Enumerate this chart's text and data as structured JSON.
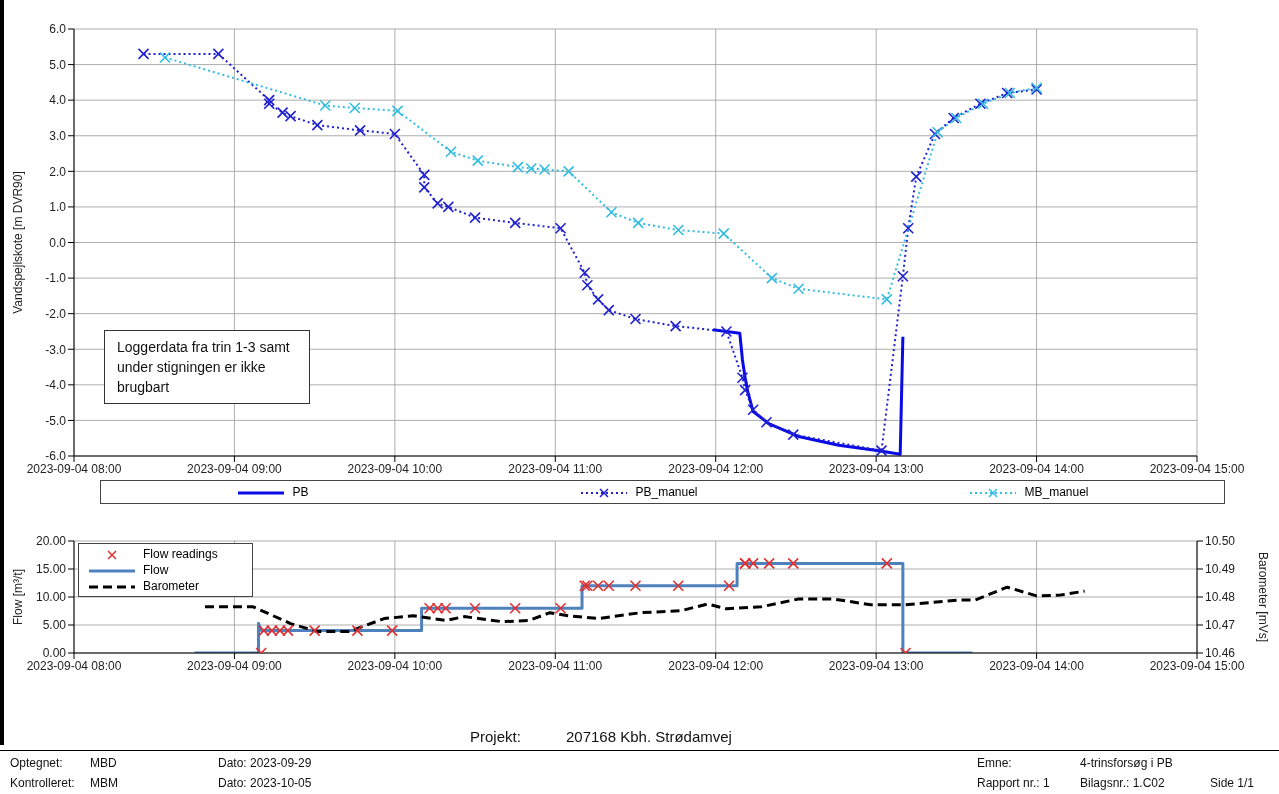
{
  "chart_data": [
    {
      "type": "line",
      "ylabel": "Vandspejlskote [m DVR90]",
      "xlim": [
        "2023-09-04T08:00",
        "2023-09-04T15:00"
      ],
      "xticks": [
        {
          "value": "2023-09-04T08:00",
          "label": "2023-09-04 08:00"
        },
        {
          "value": "2023-09-04T09:00",
          "label": "2023-09-04 09:00"
        },
        {
          "value": "2023-09-04T10:00",
          "label": "2023-09-04 10:00"
        },
        {
          "value": "2023-09-04T11:00",
          "label": "2023-09-04 11:00"
        },
        {
          "value": "2023-09-04T12:00",
          "label": "2023-09-04 12:00"
        },
        {
          "value": "2023-09-04T13:00",
          "label": "2023-09-04 13:00"
        },
        {
          "value": "2023-09-04T14:00",
          "label": "2023-09-04 14:00"
        },
        {
          "value": "2023-09-04T15:00",
          "label": "2023-09-04 15:00"
        }
      ],
      "ylim": [
        -6,
        6
      ],
      "yticks": [
        {
          "value": -6,
          "label": "-6.0"
        },
        {
          "value": -5,
          "label": "-5.0"
        },
        {
          "value": -4,
          "label": "-4.0"
        },
        {
          "value": -3,
          "label": "-3.0"
        },
        {
          "value": -2,
          "label": "-2.0"
        },
        {
          "value": -1,
          "label": "-1.0"
        },
        {
          "value": 0,
          "label": "0.0"
        },
        {
          "value": 1,
          "label": "1.0"
        },
        {
          "value": 2,
          "label": "2.0"
        },
        {
          "value": 3,
          "label": "3.0"
        },
        {
          "value": 4,
          "label": "4.0"
        },
        {
          "value": 5,
          "label": "5.0"
        },
        {
          "value": 6,
          "label": "6.0"
        }
      ],
      "grid": true,
      "legend": "bottom",
      "annotations": [
        "Loggerdata fra trin 1-3 samt under stigningen er ikke brugbart"
      ],
      "series": [
        {
          "name": "PB",
          "color": "#0a0ae6",
          "marker": "none",
          "line_style": "solid",
          "x": [
            "2023-09-04T11:59",
            "2023-09-04T12:09",
            "2023-09-04T12:10",
            "2023-09-04T12:11",
            "2023-09-04T12:12",
            "2023-09-04T12:14",
            "2023-09-04T12:20",
            "2023-09-04T12:31",
            "2023-09-04T12:46",
            "2023-09-04T13:01",
            "2023-09-04T13:09",
            "2023-09-04T13:10"
          ],
          "values": [
            -2.45,
            -2.55,
            -3.3,
            -3.8,
            -4.2,
            -4.75,
            -5.1,
            -5.45,
            -5.7,
            -5.85,
            -5.95,
            -2.65
          ]
        },
        {
          "name": "PB_manuel",
          "color": "#2020d0",
          "marker": "cross",
          "line_style": "dotted",
          "x": [
            "2023-09-04T08:26",
            "2023-09-04T08:54",
            "2023-09-04T09:13",
            "2023-09-04T09:13",
            "2023-09-04T09:18",
            "2023-09-04T09:21",
            "2023-09-04T09:31",
            "2023-09-04T09:47",
            "2023-09-04T10:00",
            "2023-09-04T10:11",
            "2023-09-04T10:11",
            "2023-09-04T10:16",
            "2023-09-04T10:20",
            "2023-09-04T10:30",
            "2023-09-04T10:45",
            "2023-09-04T11:02",
            "2023-09-04T11:11",
            "2023-09-04T11:12",
            "2023-09-04T11:16",
            "2023-09-04T11:20",
            "2023-09-04T11:30",
            "2023-09-04T11:45",
            "2023-09-04T12:04",
            "2023-09-04T12:10",
            "2023-09-04T12:11",
            "2023-09-04T12:14",
            "2023-09-04T12:19",
            "2023-09-04T12:29",
            "2023-09-04T13:02",
            "2023-09-04T13:10",
            "2023-09-04T13:12",
            "2023-09-04T13:15",
            "2023-09-04T13:22",
            "2023-09-04T13:29",
            "2023-09-04T13:39",
            "2023-09-04T13:49",
            "2023-09-04T14:00"
          ],
          "values": [
            5.3,
            5.3,
            4.0,
            3.9,
            3.65,
            3.55,
            3.3,
            3.15,
            3.05,
            1.9,
            1.55,
            1.1,
            1.0,
            0.7,
            0.55,
            0.4,
            -0.85,
            -1.2,
            -1.6,
            -1.9,
            -2.15,
            -2.35,
            -2.5,
            -3.8,
            -4.15,
            -4.7,
            -5.05,
            -5.4,
            -5.85,
            -0.95,
            0.4,
            1.85,
            3.05,
            3.5,
            3.9,
            4.2,
            4.3
          ]
        },
        {
          "name": "MB_manuel",
          "color": "#33bde0",
          "marker": "cross",
          "line_style": "dotted",
          "x": [
            "2023-09-04T08:34",
            "2023-09-04T09:34",
            "2023-09-04T09:45",
            "2023-09-04T10:01",
            "2023-09-04T10:21",
            "2023-09-04T10:31",
            "2023-09-04T10:46",
            "2023-09-04T10:51",
            "2023-09-04T10:56",
            "2023-09-04T11:05",
            "2023-09-04T11:21",
            "2023-09-04T11:31",
            "2023-09-04T11:46",
            "2023-09-04T12:03",
            "2023-09-04T12:21",
            "2023-09-04T12:31",
            "2023-09-04T13:04",
            "2023-09-04T13:23",
            "2023-09-04T13:30",
            "2023-09-04T13:40",
            "2023-09-04T13:50",
            "2023-09-04T14:00"
          ],
          "values": [
            5.2,
            3.85,
            3.78,
            3.7,
            2.55,
            2.3,
            2.12,
            2.08,
            2.05,
            2.0,
            0.85,
            0.55,
            0.35,
            0.25,
            -1.0,
            -1.3,
            -1.6,
            3.1,
            3.5,
            3.9,
            4.2,
            4.35
          ]
        }
      ]
    },
    {
      "type": "line",
      "ylabel": "Flow [m³/t]",
      "y2label": "Barometer [mVs]",
      "xlim": [
        "2023-09-04T08:00",
        "2023-09-04T15:00"
      ],
      "xticks": [
        {
          "value": "2023-09-04T08:00",
          "label": "2023-09-04 08:00"
        },
        {
          "value": "2023-09-04T09:00",
          "label": "2023-09-04 09:00"
        },
        {
          "value": "2023-09-04T10:00",
          "label": "2023-09-04 10:00"
        },
        {
          "value": "2023-09-04T11:00",
          "label": "2023-09-04 11:00"
        },
        {
          "value": "2023-09-04T12:00",
          "label": "2023-09-04 12:00"
        },
        {
          "value": "2023-09-04T13:00",
          "label": "2023-09-04 13:00"
        },
        {
          "value": "2023-09-04T14:00",
          "label": "2023-09-04 14:00"
        },
        {
          "value": "2023-09-04T15:00",
          "label": "2023-09-04 15:00"
        }
      ],
      "ylim": [
        0,
        20
      ],
      "yticks": [
        {
          "value": 0,
          "label": "0.00"
        },
        {
          "value": 5,
          "label": "5.00"
        },
        {
          "value": 10,
          "label": "10.00"
        },
        {
          "value": 15,
          "label": "15.00"
        },
        {
          "value": 20,
          "label": "20.00"
        }
      ],
      "y2lim": [
        10.46,
        10.5
      ],
      "y2ticks": [
        {
          "value": 10.46,
          "label": "10.46"
        },
        {
          "value": 10.47,
          "label": "10.47"
        },
        {
          "value": 10.48,
          "label": "10.48"
        },
        {
          "value": 10.49,
          "label": "10.49"
        },
        {
          "value": 10.5,
          "label": "10.50"
        }
      ],
      "grid": true,
      "legend": "top left",
      "annotations": [
        "Projekt:",
        "207168 Kbh. Strødamvej",
        "Optegnet:",
        "MBD",
        "Dato: 2023-09-29",
        "Kontrolleret:",
        "MBM",
        "Dato: 2023-10-05",
        "Emne:",
        "4-trinsforsøg i PB",
        "Rapport nr.: 1",
        "Bilagsnr.: 1.C02",
        "Side 1/1"
      ],
      "series": [
        {
          "name": "Flow readings",
          "color": "#e03030",
          "type": "scatter",
          "marker": "cross",
          "x": [
            "2023-09-04T09:10",
            "2023-09-04T09:11",
            "2023-09-04T09:14",
            "2023-09-04T09:17",
            "2023-09-04T09:20",
            "2023-09-04T09:30",
            "2023-09-04T09:46",
            "2023-09-04T09:59",
            "2023-09-04T10:13",
            "2023-09-04T10:16",
            "2023-09-04T10:19",
            "2023-09-04T10:30",
            "2023-09-04T10:45",
            "2023-09-04T11:02",
            "2023-09-04T11:11",
            "2023-09-04T11:12",
            "2023-09-04T11:16",
            "2023-09-04T11:20",
            "2023-09-04T11:30",
            "2023-09-04T11:46",
            "2023-09-04T12:05",
            "2023-09-04T12:11",
            "2023-09-04T12:11",
            "2023-09-04T12:14",
            "2023-09-04T12:20",
            "2023-09-04T12:29",
            "2023-09-04T13:04",
            "2023-09-04T13:11"
          ],
          "values": [
            0,
            4,
            4,
            4,
            4,
            4,
            4,
            4,
            8,
            8,
            8,
            8,
            8,
            8,
            12,
            12,
            12,
            12,
            12,
            12,
            12,
            16,
            16,
            16,
            16,
            16,
            16,
            0
          ]
        },
        {
          "name": "Flow",
          "color": "#4f81bd",
          "marker": "none",
          "line_style": "solid",
          "x": [
            "2023-09-04T08:45",
            "2023-09-04T09:09",
            "2023-09-04T09:09",
            "2023-09-04T09:10",
            "2023-09-04T10:10",
            "2023-09-04T10:10",
            "2023-09-04T11:10",
            "2023-09-04T11:10",
            "2023-09-04T12:08",
            "2023-09-04T12:08",
            "2023-09-04T13:10",
            "2023-09-04T13:10",
            "2023-09-04T13:36"
          ],
          "values": [
            0,
            0,
            5.3,
            4,
            4,
            8,
            8,
            12,
            12,
            16,
            16,
            0,
            0
          ]
        },
        {
          "name": "Barometer",
          "color": "#000000",
          "axis": "y2",
          "marker": "none",
          "line_style": "dashed",
          "x": [
            "2023-09-04T08:49",
            "2023-09-04T09:07",
            "2023-09-04T09:21",
            "2023-09-04T09:31",
            "2023-09-04T09:43",
            "2023-09-04T09:56",
            "2023-09-04T10:07",
            "2023-09-04T10:19",
            "2023-09-04T10:26",
            "2023-09-04T10:40",
            "2023-09-04T10:50",
            "2023-09-04T10:58",
            "2023-09-04T11:05",
            "2023-09-04T11:16",
            "2023-09-04T11:32",
            "2023-09-04T11:47",
            "2023-09-04T11:57",
            "2023-09-04T12:04",
            "2023-09-04T12:17",
            "2023-09-04T12:31",
            "2023-09-04T12:44",
            "2023-09-04T12:58",
            "2023-09-04T13:11",
            "2023-09-04T13:31",
            "2023-09-04T13:37",
            "2023-09-04T13:49",
            "2023-09-04T14:00",
            "2023-09-04T14:09",
            "2023-09-04T14:18"
          ],
          "values": [
            10.4765,
            10.4765,
            10.4705,
            10.4677,
            10.4677,
            10.4723,
            10.4733,
            10.4716,
            10.473,
            10.4712,
            10.4716,
            10.4744,
            10.4733,
            10.4723,
            10.4744,
            10.4751,
            10.4775,
            10.4758,
            10.4765,
            10.4793,
            10.4793,
            10.4772,
            10.4772,
            10.4789,
            10.4789,
            10.4835,
            10.4804,
            10.4807,
            10.4821
          ]
        }
      ]
    }
  ]
}
